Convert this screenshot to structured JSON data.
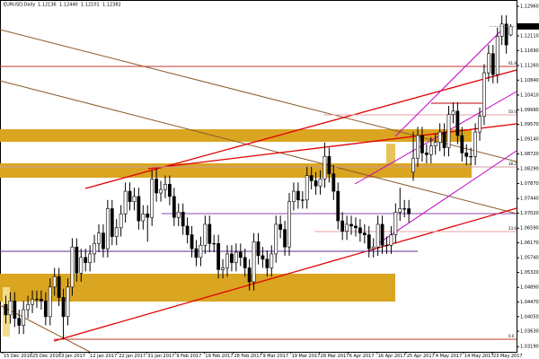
{
  "chart_data": {
    "type": "candlestick",
    "title": "EURUSD,Daily",
    "header_labels": [
      "1.12136",
      "1.12440",
      "1.12101",
      "1.12382"
    ],
    "bull_color": "#ffffff",
    "bear_color": "#000000",
    "outline_color": "#000000",
    "ylim": [
      1.0304,
      1.1314
    ],
    "yticks": [
      {
        "value": 1.1296,
        "label": "1.12960"
      },
      {
        "value": 1.1211,
        "label": "1.12110"
      },
      {
        "value": 1.1169,
        "label": "1.11690"
      },
      {
        "value": 1.1126,
        "label": "1.11260"
      },
      {
        "value": 1.1084,
        "label": "1.10840"
      },
      {
        "value": 1.1041,
        "label": "1.10410"
      },
      {
        "value": 1.0999,
        "label": "1.09990"
      },
      {
        "value": 1.0957,
        "label": "1.09570"
      },
      {
        "value": 1.0914,
        "label": "1.09140"
      },
      {
        "value": 1.0872,
        "label": "1.08720"
      },
      {
        "value": 1.0829,
        "label": "1.08290"
      },
      {
        "value": 1.0787,
        "label": "1.07870"
      },
      {
        "value": 1.0744,
        "label": "1.07440"
      },
      {
        "value": 1.0702,
        "label": "1.07020"
      },
      {
        "value": 1.0659,
        "label": "1.06590"
      },
      {
        "value": 1.0617,
        "label": "1.06170"
      },
      {
        "value": 1.0574,
        "label": "1.05740"
      },
      {
        "value": 1.0532,
        "label": "1.05320"
      },
      {
        "value": 1.0489,
        "label": "1.04890"
      },
      {
        "value": 1.0447,
        "label": "1.04470"
      },
      {
        "value": 1.0405,
        "label": "1.04050"
      },
      {
        "value": 1.0363,
        "label": "1.03630"
      },
      {
        "value": 1.0319,
        "label": "1.03190"
      }
    ],
    "xlabels": [
      "15 Dec 2016",
      "25 Dec 2016",
      "3 Jan 2017",
      "12 Jan 2017",
      "22 Jan 2017",
      "31 Jan 2017",
      "9 Feb 2017",
      "19 Feb 2017",
      "28 Feb 2017",
      "9 Mar 2017",
      "19 Mar 2017",
      "28 Mar 2017",
      "6 Apr 2017",
      "16 Apr 2017",
      "25 Apr 2017",
      "4 May 2017",
      "14 May 2017",
      "23 May 2017"
    ],
    "fib_labels": [
      "61.8",
      "50.0",
      "38.2",
      "23.6",
      "0.0"
    ],
    "open": [
      1.044,
      1.041,
      1.045,
      1.04,
      1.038,
      1.0425,
      1.044,
      1.0455,
      1.0455,
      1.045,
      1.0405,
      1.049,
      1.052,
      1.046,
      1.0405,
      1.049,
      1.0605,
      1.053,
      1.0575,
      1.056,
      1.0585,
      1.0615,
      1.0645,
      1.06,
      1.0715,
      1.0635,
      1.066,
      1.07,
      1.0765,
      1.0735,
      1.075,
      1.068,
      1.07,
      1.069,
      1.08,
      1.076,
      1.077,
      1.0785,
      1.075,
      1.069,
      1.0705,
      1.0665,
      1.064,
      1.06,
      1.0575,
      1.061,
      1.067,
      1.0615,
      1.0615,
      1.054,
      1.0545,
      1.0585,
      1.056,
      1.059,
      1.0575,
      1.0545,
      1.0505,
      1.062,
      1.058,
      1.057,
      1.0545,
      1.0585,
      1.067,
      1.0655,
      1.0605,
      1.0735,
      1.0765,
      1.074,
      1.074,
      1.081,
      1.0795,
      1.078,
      1.08,
      1.0865,
      1.0815,
      1.0765,
      1.068,
      1.065,
      1.067,
      1.0665,
      1.066,
      1.0645,
      1.064,
      1.06,
      1.0605,
      1.067,
      1.061,
      1.061,
      1.064,
      1.0705,
      1.0715,
      1.0715,
      1.082,
      1.086,
      1.0925,
      1.0875,
      1.087,
      1.0895,
      1.0905,
      1.0935,
      1.089,
      1.0985,
      1.0995,
      1.0925,
      1.0875,
      1.0865,
      1.0865,
      1.0935,
      1.098,
      1.1105,
      1.116,
      1.11,
      1.121,
      1.1245,
      1.12136
    ],
    "high": [
      1.0465,
      1.0475,
      1.0475,
      1.0425,
      1.045,
      1.0465,
      1.048,
      1.048,
      1.048,
      1.0475,
      1.0515,
      1.0545,
      1.0545,
      1.0485,
      1.0515,
      1.063,
      1.063,
      1.06,
      1.06,
      1.061,
      1.064,
      1.067,
      1.067,
      1.074,
      1.074,
      1.0685,
      1.0725,
      1.079,
      1.079,
      1.0775,
      1.0775,
      1.0725,
      1.0725,
      1.0825,
      1.083,
      1.0795,
      1.081,
      1.081,
      1.0775,
      1.073,
      1.073,
      1.069,
      1.0665,
      1.0625,
      1.0635,
      1.0695,
      1.0695,
      1.064,
      1.064,
      1.057,
      1.061,
      1.061,
      1.0615,
      1.0615,
      1.06,
      1.057,
      1.0645,
      1.0645,
      1.0605,
      1.0595,
      1.061,
      1.0695,
      1.0695,
      1.068,
      1.076,
      1.079,
      1.079,
      1.0765,
      1.0835,
      1.0835,
      1.082,
      1.0825,
      1.0905,
      1.089,
      1.084,
      1.079,
      1.0705,
      1.0695,
      1.0695,
      1.069,
      1.0685,
      1.067,
      1.0665,
      1.063,
      1.0695,
      1.0695,
      1.0635,
      1.0665,
      1.073,
      1.0775,
      1.074,
      1.074,
      1.0935,
      1.095,
      1.095,
      1.09,
      1.092,
      1.093,
      1.096,
      1.096,
      1.101,
      1.102,
      1.102,
      1.095,
      1.09,
      1.089,
      1.096,
      1.1005,
      1.113,
      1.1185,
      1.1185,
      1.1235,
      1.127,
      1.127,
      1.1244
    ],
    "low": [
      1.0385,
      1.0385,
      1.0375,
      1.0355,
      1.0355,
      1.04,
      1.0415,
      1.043,
      1.0425,
      1.038,
      1.038,
      1.0465,
      1.0435,
      1.034,
      1.038,
      1.0465,
      1.0505,
      1.0505,
      1.0535,
      1.0535,
      1.056,
      1.059,
      1.0575,
      1.0575,
      1.061,
      1.061,
      1.0635,
      1.0675,
      1.071,
      1.071,
      1.0655,
      1.0655,
      1.062,
      1.0665,
      1.0735,
      1.0735,
      1.0745,
      1.0725,
      1.0665,
      1.0665,
      1.064,
      1.0615,
      1.0575,
      1.055,
      1.055,
      1.0585,
      1.059,
      1.059,
      1.0515,
      1.0515,
      1.052,
      1.0535,
      1.0535,
      1.055,
      1.052,
      1.048,
      1.048,
      1.0555,
      1.0545,
      1.052,
      1.052,
      1.056,
      1.063,
      1.058,
      1.058,
      1.071,
      1.0715,
      1.0715,
      1.0715,
      1.077,
      1.0755,
      1.0755,
      1.0775,
      1.079,
      1.074,
      1.0655,
      1.0625,
      1.0625,
      1.064,
      1.0635,
      1.062,
      1.0615,
      1.0575,
      1.0575,
      1.058,
      1.0585,
      1.0585,
      1.0585,
      1.0615,
      1.068,
      1.069,
      1.0675,
      1.0795,
      1.0835,
      1.085,
      1.0845,
      1.0845,
      1.087,
      1.088,
      1.0865,
      1.0865,
      1.096,
      1.09,
      1.085,
      1.084,
      1.084,
      1.084,
      1.091,
      1.0955,
      1.108,
      1.1075,
      1.1075,
      1.1185,
      1.116,
      1.12101
    ],
    "close": [
      1.041,
      1.045,
      1.04,
      1.038,
      1.0425,
      1.044,
      1.0455,
      1.0455,
      1.045,
      1.0405,
      1.049,
      1.052,
      1.046,
      1.0405,
      1.049,
      1.0605,
      1.053,
      1.0575,
      1.056,
      1.0585,
      1.0615,
      1.0645,
      1.06,
      1.0715,
      1.0635,
      1.066,
      1.07,
      1.0765,
      1.0735,
      1.075,
      1.068,
      1.07,
      1.069,
      1.08,
      1.076,
      1.077,
      1.0785,
      1.075,
      1.069,
      1.0705,
      1.0665,
      1.064,
      1.06,
      1.0575,
      1.061,
      1.067,
      1.0615,
      1.0615,
      1.054,
      1.0545,
      1.0585,
      1.056,
      1.059,
      1.0575,
      1.0545,
      1.0505,
      1.062,
      1.058,
      1.057,
      1.0545,
      1.0585,
      1.067,
      1.0655,
      1.0605,
      1.0735,
      1.0765,
      1.074,
      1.074,
      1.081,
      1.0795,
      1.078,
      1.08,
      1.0865,
      1.0815,
      1.0765,
      1.068,
      1.065,
      1.067,
      1.0665,
      1.066,
      1.0645,
      1.064,
      1.06,
      1.0605,
      1.067,
      1.061,
      1.061,
      1.064,
      1.0705,
      1.0715,
      1.0715,
      1.07,
      1.086,
      1.0925,
      1.0875,
      1.087,
      1.0895,
      1.0905,
      1.0935,
      1.089,
      1.0985,
      1.0995,
      1.0925,
      1.0875,
      1.0865,
      1.0865,
      1.0935,
      1.098,
      1.1105,
      1.116,
      1.11,
      1.121,
      1.1245,
      1.1185,
      1.12382
    ]
  }
}
